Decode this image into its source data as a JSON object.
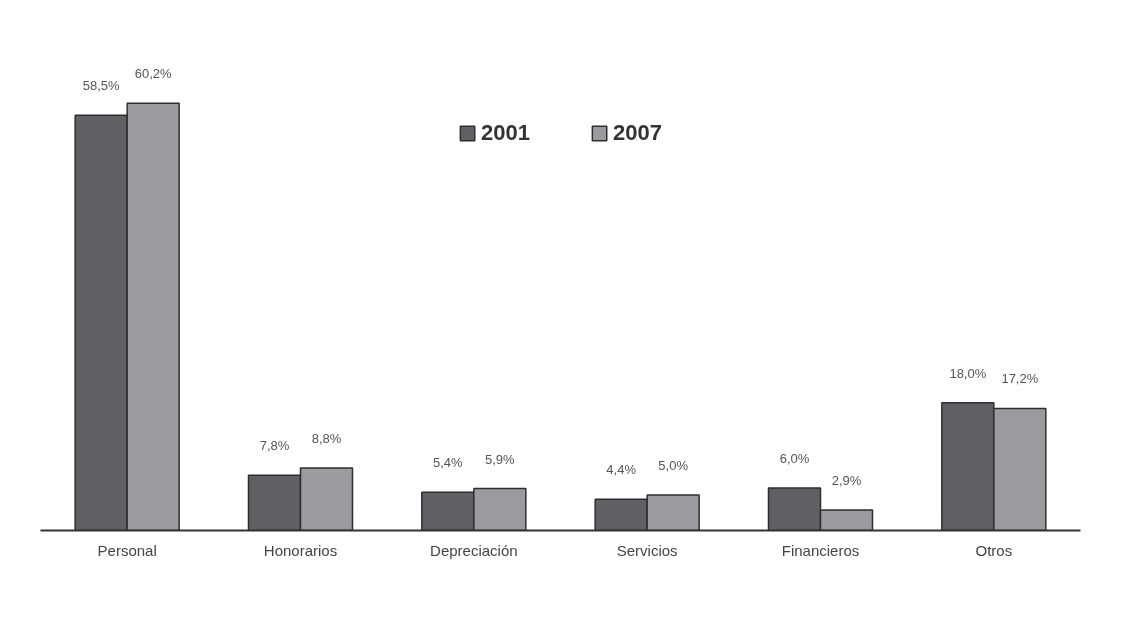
{
  "chart_data": {
    "type": "bar",
    "categories": [
      "Personal",
      "Honorarios",
      "Depreciación",
      "Servicios",
      "Financieros",
      "Otros"
    ],
    "series": [
      {
        "name": "2001",
        "color": "#5f6064",
        "values": [
          58.5,
          7.8,
          5.4,
          4.4,
          6.0,
          18.0
        ],
        "value_labels": [
          "58,5%",
          "7,8%",
          "5,4%",
          "4,4%",
          "6,0%",
          "18,0%"
        ]
      },
      {
        "name": "2007",
        "color": "#9a9b9f",
        "values": [
          60.2,
          8.8,
          5.9,
          5.0,
          2.9,
          17.2
        ],
        "value_labels": [
          "60,2%",
          "8,8%",
          "5,9%",
          "5,0%",
          "2,9%",
          "17,2%"
        ]
      }
    ],
    "tick_labels": "x",
    "grid": false,
    "legend": "top"
  }
}
